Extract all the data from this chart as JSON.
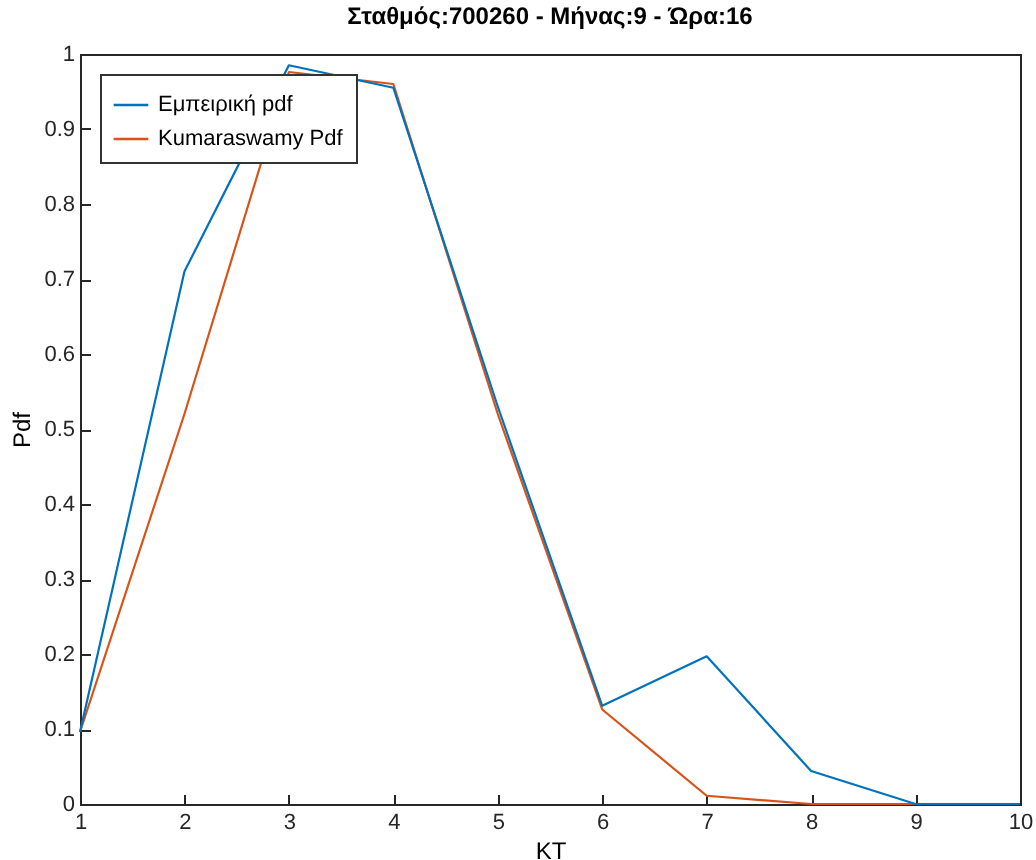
{
  "chart_data": {
    "type": "line",
    "title": "Σταθμός:700260 - Μήνας:9 - Ώρα:16",
    "xlabel": "KT",
    "ylabel": "Pdf",
    "x": [
      1,
      2,
      3,
      4,
      5,
      6,
      7,
      8,
      9,
      10
    ],
    "series": [
      {
        "name": "Εμπειρική pdf",
        "color": "#0072bd",
        "values": [
          0.096,
          0.71,
          0.985,
          0.955,
          0.53,
          0.131,
          0.197,
          0.044,
          0,
          0
        ]
      },
      {
        "name": "Kumaraswamy Pdf",
        "color": "#d95319",
        "values": [
          0.096,
          0.52,
          0.976,
          0.96,
          0.52,
          0.126,
          0.011,
          0,
          0,
          0
        ]
      }
    ],
    "xlim": [
      1,
      10
    ],
    "xticks": [
      1,
      2,
      3,
      4,
      5,
      6,
      7,
      8,
      9,
      10
    ],
    "ylim": [
      0,
      1
    ],
    "yticks": [
      0,
      0.1,
      0.2,
      0.3,
      0.4,
      0.5,
      0.6,
      0.7,
      0.8,
      0.9,
      1
    ],
    "legend": "top left",
    "grid": false,
    "marker": "none",
    "line_style": "solid"
  }
}
